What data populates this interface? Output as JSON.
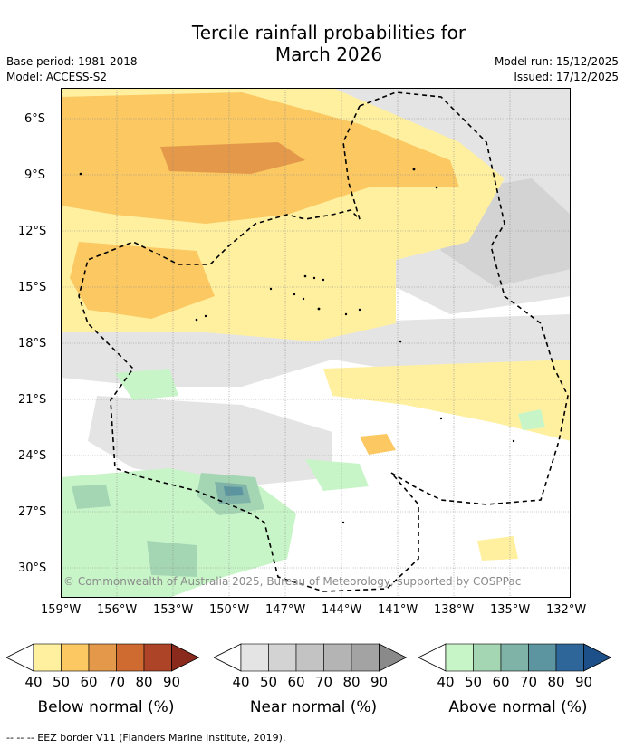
{
  "title": {
    "line1": "Tercile rainfall probabilities for",
    "line2": "March 2026"
  },
  "meta": {
    "base_period": "Base period: 1981-2018",
    "model": "Model: ACCESS-S2",
    "model_run": "Model run: 15/12/2025",
    "issued": "Issued: 17/12/2025"
  },
  "map": {
    "lat_labels": [
      "6°S",
      "9°S",
      "12°S",
      "15°S",
      "18°S",
      "21°S",
      "24°S",
      "27°S",
      "30°S"
    ],
    "lon_labels": [
      "159°W",
      "156°W",
      "153°W",
      "150°W",
      "147°W",
      "144°W",
      "141°W",
      "138°W",
      "135°W",
      "132°W"
    ],
    "credit": "© Commonwealth of Australia 2025, Bureau of Meteorology, supported by COSPPac"
  },
  "colorbars": [
    {
      "title": "Below normal (%)",
      "labels": [
        "40",
        "50",
        "60",
        "70",
        "80",
        "90"
      ],
      "colors": [
        "#fff0a0",
        "#fbc862",
        "#e4994a",
        "#cf6a30",
        "#ad4427",
        "#8a2a1c"
      ]
    },
    {
      "title": "Near normal (%)",
      "labels": [
        "40",
        "50",
        "60",
        "70",
        "80",
        "90"
      ],
      "colors": [
        "#e4e4e4",
        "#d3d3d3",
        "#c3c3c3",
        "#b4b4b4",
        "#a3a3a3",
        "#8a8a8a"
      ]
    },
    {
      "title": "Above normal (%)",
      "labels": [
        "40",
        "50",
        "60",
        "70",
        "80",
        "90"
      ],
      "colors": [
        "#c8f5c8",
        "#a5d6b4",
        "#7fb3a8",
        "#5c95a0",
        "#2f6699",
        "#1d4f88"
      ]
    }
  ],
  "colors": {
    "below_50": "#fbc862",
    "below_40": "#fff0a0",
    "below_60": "#e4994a",
    "near_40": "#e4e4e4",
    "near_50": "#d3d3d3",
    "above_40": "#c8f5c8",
    "above_50": "#a5d6b4",
    "above_60": "#7fb3a8",
    "above_70": "#5c95a0"
  },
  "footer": "--  --  -- EEZ border V11 (Flanders Marine Institute, 2019)."
}
